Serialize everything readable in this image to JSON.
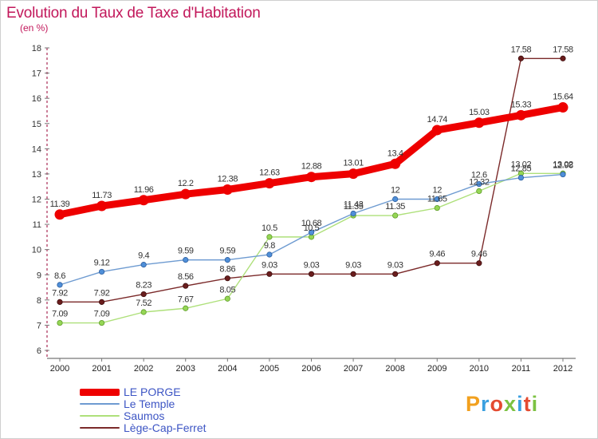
{
  "title": "Evolution du Taux de Taxe d'Habitation",
  "unit_label": "(en %)",
  "logo_text": "Proxiti",
  "logo_colors": [
    "#f2a01e",
    "#3aa0e0",
    "#e44a30",
    "#7cc242",
    "#3aa0e0",
    "#e44a30",
    "#7cc242"
  ],
  "chart_data": {
    "type": "line",
    "title": "Evolution du Taux de Taxe d'Habitation",
    "ylabel": "(en %)",
    "xlabel": "",
    "ylim": [
      6,
      18
    ],
    "yticks": [
      6,
      7,
      8,
      9,
      10,
      11,
      12,
      13,
      14,
      15,
      16,
      17,
      18
    ],
    "grid": false,
    "legend_position": "bottom-left",
    "x": [
      "2000",
      "2001",
      "2002",
      "2003",
      "2004",
      "2005",
      "2006",
      "2007",
      "2008",
      "2009",
      "2010",
      "2011",
      "2012"
    ],
    "series": [
      {
        "name": "LE PORGE",
        "color": "#ee0000",
        "values": [
          11.39,
          11.73,
          11.96,
          12.2,
          12.38,
          12.63,
          12.88,
          13.01,
          13.4,
          14.74,
          15.03,
          15.33,
          15.64
        ],
        "labels": [
          "11.39",
          "11.73",
          "11.96",
          "12.2",
          "12.38",
          "12.63",
          "12.88",
          "13.01",
          "13.4",
          "14.74",
          "15.03",
          "15.33",
          "15.64"
        ]
      },
      {
        "name": "Le Temple",
        "color": "#6e9bd1",
        "values": [
          8.6,
          9.12,
          9.4,
          9.59,
          9.59,
          9.8,
          10.68,
          11.43,
          12,
          12,
          12.6,
          12.85,
          12.98
        ],
        "labels": [
          "8.6",
          "9.12",
          "9.4",
          "9.59",
          "9.59",
          "9.8",
          "10.68",
          "11.43",
          "12",
          "12",
          "12.6",
          "12.85",
          "12.98"
        ]
      },
      {
        "name": "Saumos",
        "color": "#aee07a",
        "values": [
          7.09,
          7.09,
          7.52,
          7.67,
          8.05,
          10.5,
          10.5,
          11.35,
          11.35,
          11.65,
          12.32,
          13.02,
          13.02
        ],
        "labels": [
          "7.09",
          "7.09",
          "7.52",
          "7.67",
          "8.05",
          "10.5",
          "10.5",
          "11.35",
          "11.35",
          "11.65",
          "12.32",
          "13.02",
          "13.02"
        ]
      },
      {
        "name": "Lège-Cap-Ferret",
        "color": "#7b2a2a",
        "values": [
          7.92,
          7.92,
          8.23,
          8.56,
          8.86,
          9.03,
          9.03,
          9.03,
          9.03,
          9.46,
          9.46,
          17.58,
          17.58
        ],
        "labels": [
          "7.92",
          "7.92",
          "8.23",
          "8.56",
          "8.86",
          "9.03",
          "9.03",
          "9.03",
          "9.03",
          "9.46",
          "9.46",
          "17.58",
          "17.58"
        ]
      }
    ]
  }
}
